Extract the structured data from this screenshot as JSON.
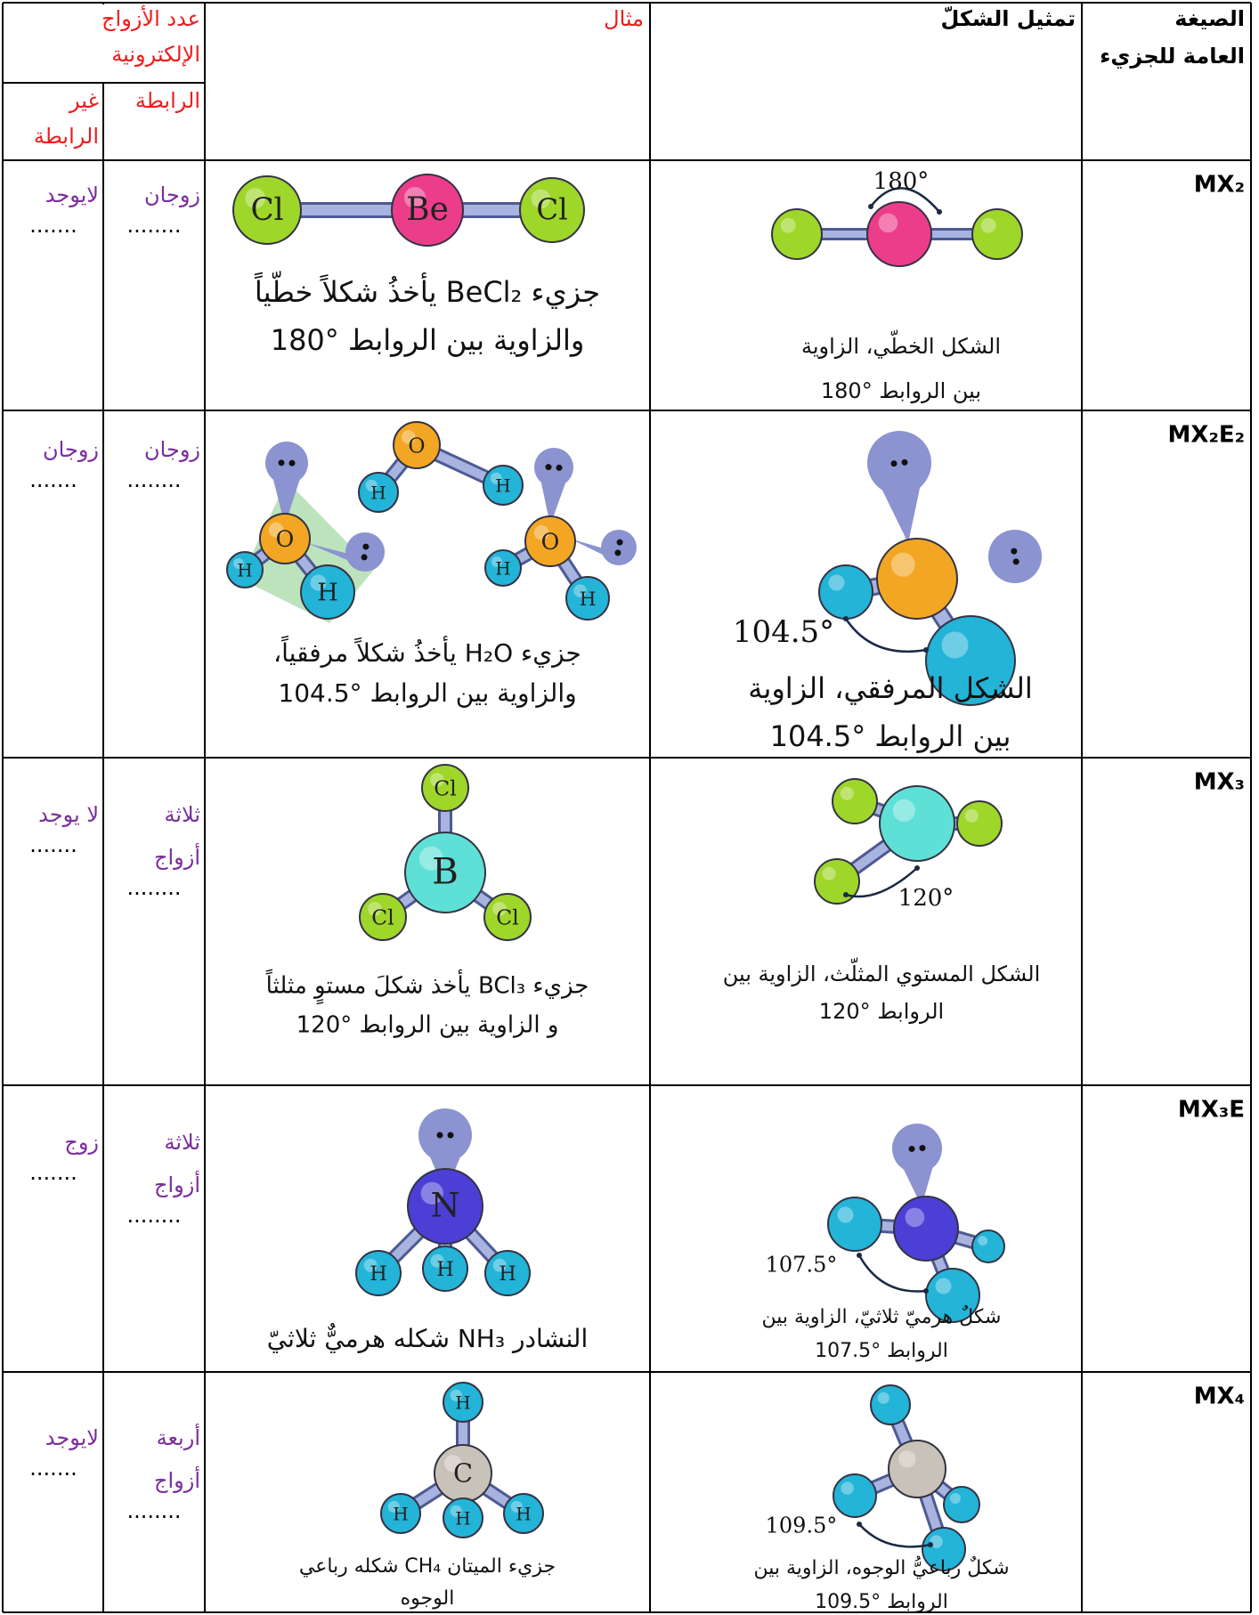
{
  "header": {
    "formula": [
      "الصيغة",
      "العامة للجزيء"
    ],
    "shape": "تمثيل الشكلّ",
    "example": "مثال",
    "pairs": [
      "عدد الأزواج",
      "الإلكترونية"
    ],
    "bonding": "الرابطة",
    "nonbonding": [
      "غير",
      "الرابطة"
    ]
  },
  "rows": [
    {
      "formula": "MX₂",
      "shape_angle": "180°",
      "shape_caption": [
        "الشكل الخطّي، الزاوية",
        "بين الروابط °180"
      ],
      "example_atoms": [
        "Cl",
        "Be",
        "Cl"
      ],
      "example_caption": [
        "جزيء BeCl₂ يأخذُ شكلاً خطّياً",
        "والزاوية بين الروابط °180"
      ],
      "bonding": [
        "زوجان"
      ],
      "bonding_blank": "........",
      "nonbonding": [
        "لايوجد"
      ],
      "nonbonding_blank": "......."
    },
    {
      "formula": "MX₂E₂",
      "shape_angle": "104.5°",
      "shape_caption": [
        "الشكل المرفقي، الزاوية",
        "بين الروابط °104.5"
      ],
      "example_atoms": [
        "O",
        "H",
        "H",
        "O",
        "H",
        "H",
        "O",
        "H",
        "H"
      ],
      "example_caption": [
        "جزيء H₂O يأخذُ شكلاً مرفقياً،",
        "والزاوية بين الروابط °104.5"
      ],
      "bonding": [
        "زوجان"
      ],
      "bonding_blank": "........",
      "nonbonding": [
        "زوجان"
      ],
      "nonbonding_blank": "......."
    },
    {
      "formula": "MX₃",
      "shape_angle": "120°",
      "shape_caption": [
        "الشكل المستوي المثلّث، الزاوية بين",
        "الروابط °120"
      ],
      "example_atoms": [
        "Cl",
        "B",
        "Cl",
        "Cl"
      ],
      "example_caption": [
        "جزيء BCl₃ يأخذ شكلَ مستوٍ مثلثاً",
        "و الزاوية بين الروابط °120"
      ],
      "bonding": [
        "ثلاثة",
        "أزواج"
      ],
      "bonding_blank": "........",
      "nonbonding": [
        "لا يوجد"
      ],
      "nonbonding_blank": "......."
    },
    {
      "formula": "MX₃E",
      "shape_angle": "107.5°",
      "shape_caption": [
        "شكلٌ هرميّ ثلاثيّ، الزاوية بين",
        "الروابط °107.5"
      ],
      "example_atoms": [
        "N",
        "H",
        "H",
        "H"
      ],
      "example_caption": [
        "النشادر NH₃ شكله هرميٌّ ثلاثيّ"
      ],
      "bonding": [
        "ثلاثة",
        "أزواج"
      ],
      "bonding_blank": "........",
      "nonbonding": [
        "زوج"
      ],
      "nonbonding_blank": "......."
    },
    {
      "formula": "MX₄",
      "shape_angle": "109.5°",
      "shape_caption": [
        "شكلٌ رباعيُّ الوجوه، الزاوية بين",
        "الروابط °109.5"
      ],
      "example_atoms": [
        "H",
        "C",
        "H",
        "H",
        "H"
      ],
      "example_caption": [
        "جزيء الميتان CH₄ شكله رباعي",
        "الوجوه"
      ],
      "bonding": [
        "أربعة",
        "أزواج"
      ],
      "bonding_blank": "........",
      "nonbonding": [
        "لايوجد"
      ],
      "nonbonding_blank": "......."
    }
  ]
}
